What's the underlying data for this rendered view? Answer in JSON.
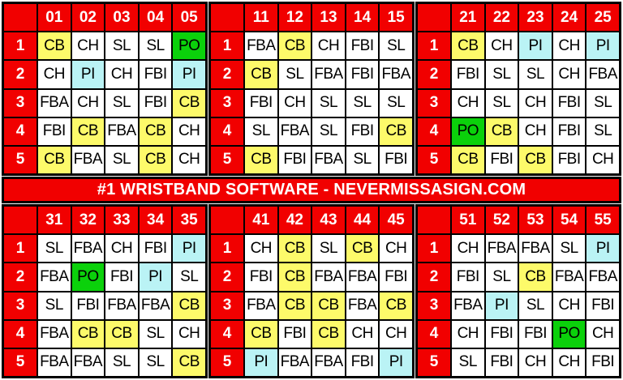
{
  "banner": {
    "text": "#1 WRISTBAND SOFTWARE - NEVERMISSASIGN.COM"
  },
  "colors": {
    "header_red": "#f10000",
    "grid_black": "#000000",
    "cell_white": "#ffffff",
    "text_black": "#000000",
    "header_text_white": "#ffffff"
  },
  "code_colors": {
    "CB": "#fdfa6a",
    "PO": "#0bd10b",
    "PI": "#baf3f5",
    "CH": "#ffffff",
    "SL": "#ffffff",
    "FBA": "#ffffff",
    "FBI": "#ffffff"
  },
  "row_labels": [
    "1",
    "2",
    "3",
    "4",
    "5"
  ],
  "sections": [
    {
      "name": "top",
      "blocks": [
        {
          "columns": [
            "01",
            "02",
            "03",
            "04",
            "05"
          ],
          "rows": [
            [
              "CB",
              "CH",
              "SL",
              "SL",
              "PO"
            ],
            [
              "CH",
              "PI",
              "CH",
              "FBI",
              "PI"
            ],
            [
              "FBA",
              "CH",
              "SL",
              "FBI",
              "CB"
            ],
            [
              "FBI",
              "CB",
              "FBA",
              "CB",
              "CH"
            ],
            [
              "CB",
              "FBA",
              "SL",
              "CB",
              "CH"
            ]
          ]
        },
        {
          "columns": [
            "11",
            "12",
            "13",
            "14",
            "15"
          ],
          "rows": [
            [
              "FBA",
              "CB",
              "CH",
              "FBI",
              "SL"
            ],
            [
              "CB",
              "SL",
              "FBA",
              "FBI",
              "FBA"
            ],
            [
              "FBI",
              "CH",
              "SL",
              "SL",
              "SL"
            ],
            [
              "SL",
              "FBA",
              "SL",
              "FBI",
              "CB"
            ],
            [
              "CB",
              "FBI",
              "FBA",
              "SL",
              "FBI"
            ]
          ]
        },
        {
          "columns": [
            "21",
            "22",
            "23",
            "24",
            "25"
          ],
          "rows": [
            [
              "CB",
              "CH",
              "PI",
              "CH",
              "PI"
            ],
            [
              "FBI",
              "SL",
              "SL",
              "CH",
              "FBA"
            ],
            [
              "CH",
              "SL",
              "CH",
              "FBI",
              "SL"
            ],
            [
              "PO",
              "CB",
              "CH",
              "FBI",
              "SL"
            ],
            [
              "CB",
              "FBI",
              "CB",
              "FBI",
              "CH"
            ]
          ]
        }
      ]
    },
    {
      "name": "bottom",
      "blocks": [
        {
          "columns": [
            "31",
            "32",
            "33",
            "34",
            "35"
          ],
          "rows": [
            [
              "SL",
              "FBA",
              "CH",
              "FBI",
              "PI"
            ],
            [
              "FBA",
              "PO",
              "FBI",
              "PI",
              "SL"
            ],
            [
              "SL",
              "FBI",
              "FBA",
              "FBA",
              "CB"
            ],
            [
              "FBA",
              "CB",
              "CB",
              "SL",
              "CH"
            ],
            [
              "FBA",
              "FBA",
              "SL",
              "SL",
              "CB"
            ]
          ]
        },
        {
          "columns": [
            "41",
            "42",
            "43",
            "44",
            "45"
          ],
          "rows": [
            [
              "CH",
              "CB",
              "SL",
              "CB",
              "CH"
            ],
            [
              "FBI",
              "CB",
              "FBA",
              "FBA",
              "FBI"
            ],
            [
              "FBA",
              "CB",
              "CB",
              "FBA",
              "CB"
            ],
            [
              "CB",
              "FBI",
              "CB",
              "CH",
              "CH"
            ],
            [
              "PI",
              "FBA",
              "FBA",
              "FBI",
              "PI"
            ]
          ]
        },
        {
          "columns": [
            "51",
            "52",
            "53",
            "54",
            "55"
          ],
          "rows": [
            [
              "CH",
              "FBA",
              "FBA",
              "SL",
              "PI"
            ],
            [
              "FBI",
              "SL",
              "CB",
              "FBA",
              "FBA"
            ],
            [
              "FBA",
              "PI",
              "SL",
              "CH",
              "FBI"
            ],
            [
              "CH",
              "FBI",
              "FBI",
              "PO",
              "CH"
            ],
            [
              "SL",
              "FBI",
              "CH",
              "CH",
              "FBI"
            ]
          ]
        }
      ]
    }
  ]
}
